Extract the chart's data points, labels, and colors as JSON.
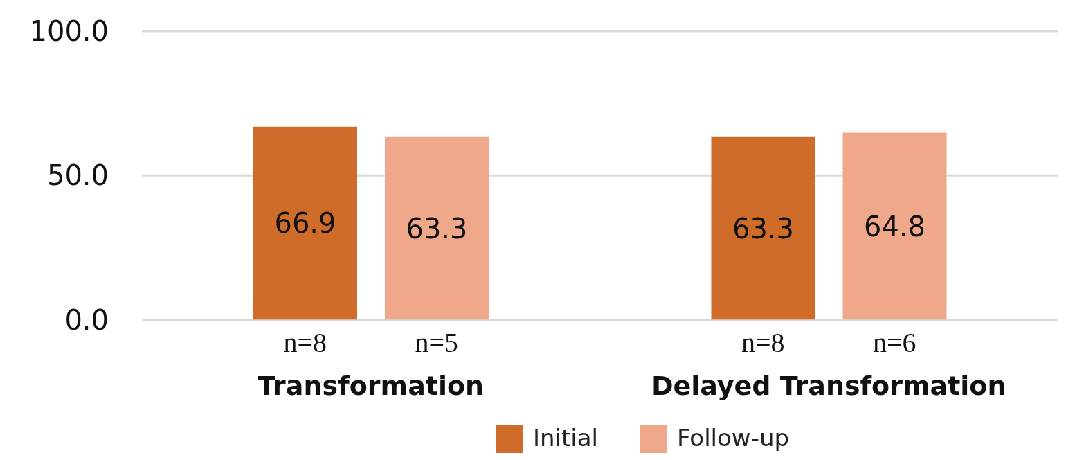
{
  "chart_data": {
    "type": "bar",
    "categories": [
      "Transformation",
      "Delayed Transformation"
    ],
    "series": [
      {
        "name": "Initial",
        "color": "#d06c2a",
        "values": [
          66.9,
          63.3
        ]
      },
      {
        "name": "Follow-up",
        "color": "#f0a88a",
        "values": [
          63.3,
          64.8
        ]
      }
    ],
    "ylim": [
      0,
      100
    ],
    "yticks": [
      {
        "value": 0,
        "label": "0.0"
      },
      {
        "value": 50,
        "label": "50.0"
      },
      {
        "value": 100,
        "label": "100.0"
      }
    ],
    "grid": "y",
    "legend": "bottom",
    "data_labels": true,
    "annotations": [
      "n=8",
      "n=5",
      "n=8",
      "n=6"
    ]
  }
}
